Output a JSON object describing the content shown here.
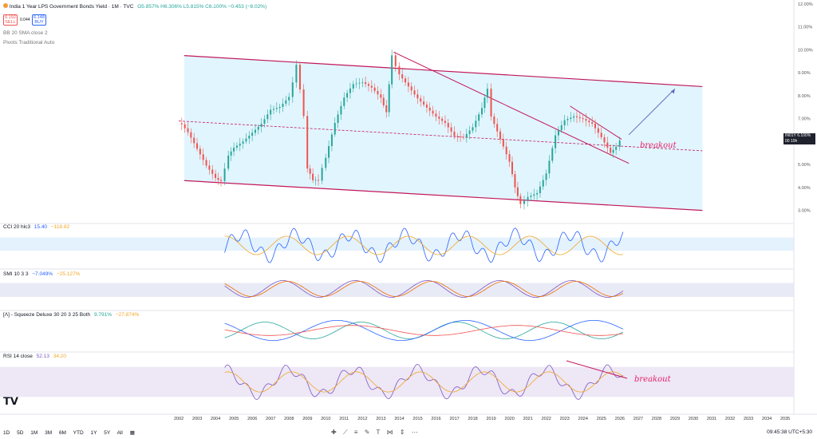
{
  "header": {
    "title": "India 1 Year LPS Government Bonds Yield · 1M · TVC",
    "ohlc": "O5.857% H6.306% L5.815% C6.100% −0.453 (−8.02%)",
    "sell_price": "6.192",
    "sell_label": "SELL",
    "spread": "0.044",
    "buy_price": "6.148",
    "buy_label": "BUY",
    "indicator1": "BB 20 SMA close 2",
    "indicator2": "Pivots Traditional Auto"
  },
  "panes": {
    "cci": {
      "label": "CCI 20 hlc3",
      "v1": "15.40",
      "v2": "−118.82"
    },
    "smi": {
      "label": "SMI 10 3 3",
      "v1": "−7.049%",
      "v2": "−25.127%"
    },
    "squeeze": {
      "label": "[Λ] - Squeeze Deluxe 30 20 3 25 Both",
      "v1": "9.791%",
      "v2": "−27.874%"
    },
    "rsi": {
      "label": "RSI 14 close",
      "v1": "52.13",
      "v2": "34.20"
    }
  },
  "annotations": {
    "breakout_main": "breakout",
    "breakout_rsi": "breakout"
  },
  "price_badge": {
    "symbol": "IN01Y",
    "value": "6.100%",
    "sub": "00 10h"
  },
  "toolbar": {
    "ranges": [
      "1D",
      "5D",
      "1M",
      "3M",
      "6M",
      "YTD",
      "1Y",
      "5Y",
      "All"
    ],
    "time": "09:45:38 UTC+5:30"
  },
  "chart_data": {
    "type": "candlestick",
    "title": "India 1 Year LPS Government Bonds Yield · 1M · TVC",
    "xlabel": "",
    "ylabel": "",
    "x_ticks": [
      "2002",
      "2003",
      "2004",
      "2005",
      "2006",
      "2007",
      "2008",
      "2009",
      "2010",
      "2011",
      "2012",
      "2013",
      "2014",
      "2015",
      "2016",
      "2017",
      "2018",
      "2019",
      "2020",
      "2021",
      "2022",
      "2023",
      "2024",
      "2025",
      "2026",
      "2027",
      "2028",
      "2029",
      "2030",
      "2031",
      "2032",
      "2033",
      "2034",
      "2035"
    ],
    "y_ticks": [
      "12.00%",
      "11.00%",
      "10.00%",
      "9.00%",
      "8.00%",
      "7.00%",
      "6.00%",
      "5.00%",
      "4.00%",
      "3.00%"
    ],
    "ylim": [
      2.5,
      12.0
    ],
    "series": [
      {
        "values": [
          [
            2002.0,
            6.8
          ],
          [
            2002.5,
            6.3
          ],
          [
            2003.0,
            5.6
          ],
          [
            2003.5,
            4.9
          ],
          [
            2004.0,
            4.4
          ],
          [
            2004.3,
            4.4
          ],
          [
            2004.7,
            5.3
          ],
          [
            2005.0,
            5.8
          ],
          [
            2005.5,
            6.1
          ],
          [
            2006.0,
            6.5
          ],
          [
            2006.5,
            6.9
          ],
          [
            2007.0,
            7.5
          ],
          [
            2007.5,
            7.6
          ],
          [
            2008.0,
            8.0
          ],
          [
            2008.2,
            8.7
          ],
          [
            2008.4,
            9.4
          ],
          [
            2008.6,
            8.2
          ],
          [
            2008.8,
            7.0
          ],
          [
            2009.0,
            4.8
          ],
          [
            2009.3,
            4.2
          ],
          [
            2009.6,
            4.3
          ],
          [
            2010.0,
            5.2
          ],
          [
            2010.5,
            6.7
          ],
          [
            2011.0,
            7.8
          ],
          [
            2011.5,
            8.4
          ],
          [
            2012.0,
            8.5
          ],
          [
            2012.5,
            8.3
          ],
          [
            2013.0,
            7.9
          ],
          [
            2013.3,
            7.4
          ],
          [
            2013.6,
            9.8
          ],
          [
            2014.0,
            9.0
          ],
          [
            2014.5,
            8.5
          ],
          [
            2015.0,
            8.0
          ],
          [
            2015.5,
            7.6
          ],
          [
            2016.0,
            7.2
          ],
          [
            2016.5,
            6.9
          ],
          [
            2017.0,
            6.3
          ],
          [
            2017.5,
            6.2
          ],
          [
            2018.0,
            6.6
          ],
          [
            2018.5,
            7.4
          ],
          [
            2018.8,
            8.2
          ],
          [
            2019.0,
            7.0
          ],
          [
            2019.5,
            6.0
          ],
          [
            2020.0,
            5.0
          ],
          [
            2020.3,
            4.0
          ],
          [
            2020.6,
            3.4
          ],
          [
            2021.0,
            3.5
          ],
          [
            2021.5,
            3.7
          ],
          [
            2022.0,
            4.6
          ],
          [
            2022.5,
            6.3
          ],
          [
            2023.0,
            7.0
          ],
          [
            2023.5,
            7.2
          ],
          [
            2024.0,
            7.1
          ],
          [
            2024.5,
            6.9
          ],
          [
            2025.0,
            6.3
          ],
          [
            2025.5,
            5.6
          ],
          [
            2025.8,
            5.7
          ],
          [
            2026.0,
            6.1
          ]
        ]
      }
    ],
    "channel": {
      "upper": [
        [
          2002.3,
          9.75
        ],
        [
          2030.5,
          8.4
        ]
      ],
      "lower": [
        [
          2002.3,
          4.3
        ],
        [
          2030.5,
          3.0
        ]
      ],
      "mid": [
        [
          2002.0,
          6.9
        ],
        [
          2030.5,
          5.6
        ]
      ]
    },
    "trendlines": [
      [
        [
          2013.7,
          9.9
        ],
        [
          2026.5,
          5.05
        ]
      ],
      [
        [
          2023.3,
          7.55
        ],
        [
          2026.1,
          6.1
        ]
      ]
    ],
    "projection": [
      [
        2026.5,
        6.3
      ],
      [
        2029.0,
        8.3
      ]
    ]
  }
}
